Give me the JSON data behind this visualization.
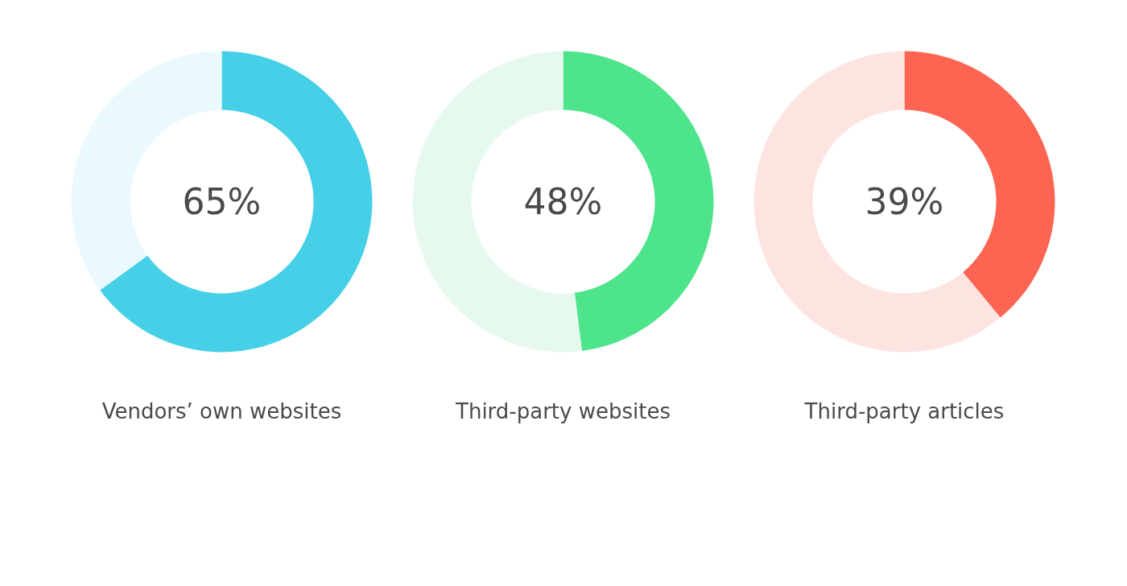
{
  "chart_data": [
    {
      "type": "donut",
      "title": "Vendors’ own websites",
      "categories": [
        null,
        null
      ],
      "values": [
        65,
        35
      ],
      "colors": [
        "#45d0e8",
        "#e9f9fd"
      ],
      "annotations": [
        "65%"
      ]
    },
    {
      "type": "donut",
      "title": "Third-party websites",
      "categories": [
        null,
        null
      ],
      "values": [
        48,
        52
      ],
      "colors": [
        "#4ee48c",
        "#e6f9ee"
      ],
      "annotations": [
        "48%"
      ]
    },
    {
      "type": "donut",
      "title": "Third-party articles",
      "categories": [
        null,
        null
      ],
      "values": [
        39,
        61
      ],
      "colors": [
        "#fd6552",
        "#fde4e0"
      ],
      "annotations": [
        "39%"
      ]
    }
  ]
}
